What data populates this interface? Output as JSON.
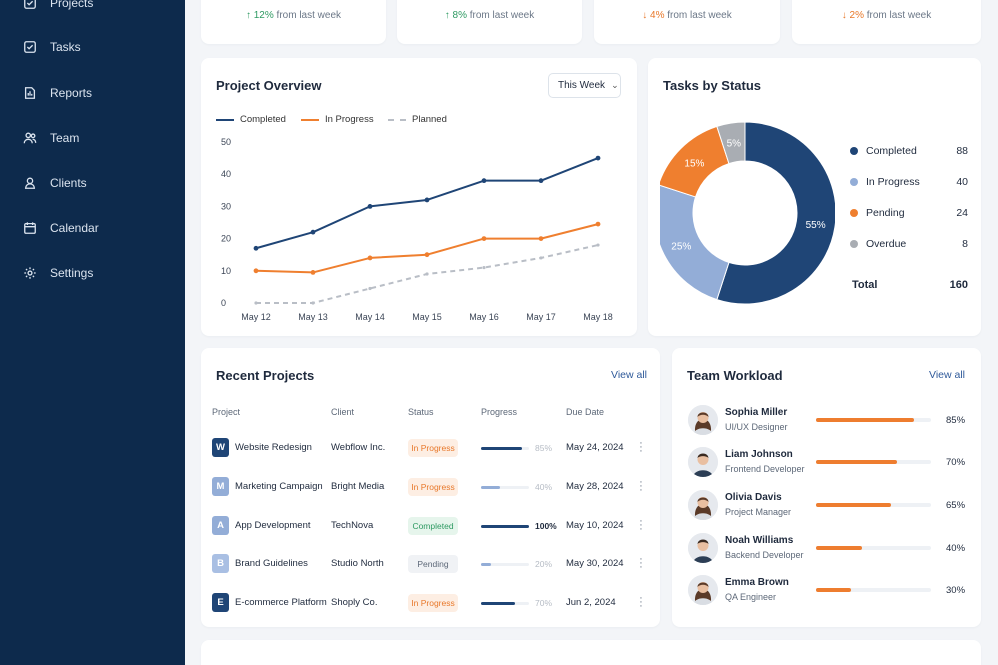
{
  "sidebar": {
    "items": [
      {
        "label": "Projects",
        "icon": "folder-icon"
      },
      {
        "label": "Tasks",
        "icon": "checkbox-icon"
      },
      {
        "label": "Reports",
        "icon": "report-icon"
      },
      {
        "label": "Team",
        "icon": "users-icon"
      },
      {
        "label": "Clients",
        "icon": "clients-icon"
      },
      {
        "label": "Calendar",
        "icon": "calendar-icon"
      },
      {
        "label": "Settings",
        "icon": "gear-icon"
      }
    ]
  },
  "stats": [
    {
      "arrow": "↑",
      "pct": "12%",
      "text": "from last week",
      "trend": "up"
    },
    {
      "arrow": "↑",
      "pct": "8%",
      "text": "from last week",
      "trend": "up"
    },
    {
      "arrow": "↓",
      "pct": "4%",
      "text": "from last week",
      "trend": "down"
    },
    {
      "arrow": "↓",
      "pct": "2%",
      "text": "from last week",
      "trend": "down"
    }
  ],
  "overview": {
    "title": "Project Overview",
    "period": "This Week",
    "legend": [
      "Completed",
      "In Progress",
      "Planned"
    ]
  },
  "tasks_status": {
    "title": "Tasks by Status",
    "items": [
      {
        "label": "Completed",
        "value": "88"
      },
      {
        "label": "In Progress",
        "value": "40"
      },
      {
        "label": "Pending",
        "value": "24"
      },
      {
        "label": "Overdue",
        "value": "8"
      }
    ],
    "total_label": "Total",
    "total_value": "160"
  },
  "chart_data": [
    {
      "type": "line",
      "x": [
        "May 12",
        "May 13",
        "May 14",
        "May 15",
        "May 16",
        "May 17",
        "May 18"
      ],
      "ylim": [
        0,
        50
      ],
      "yticks": [
        "0",
        "10",
        "20",
        "30",
        "40",
        "50"
      ],
      "series": [
        {
          "name": "Completed",
          "values": [
            17,
            22,
            30,
            32,
            38,
            38,
            45
          ],
          "color": "#1f4576",
          "style": "solid"
        },
        {
          "name": "In Progress",
          "values": [
            10,
            9.5,
            14,
            15,
            20,
            20,
            24.5
          ],
          "color": "#ef7f2f",
          "style": "solid"
        },
        {
          "name": "Planned",
          "values": [
            0,
            0,
            4.5,
            9,
            11,
            14,
            18
          ],
          "color": "#b9bec6",
          "style": "dashed"
        }
      ],
      "legend": "top-left",
      "grid": false
    },
    {
      "type": "pie",
      "donut": true,
      "labels": [
        "Completed",
        "In Progress",
        "Pending",
        "Overdue"
      ],
      "values": [
        55,
        25,
        15,
        5
      ],
      "value_labels": [
        "55%",
        "25%",
        "15%",
        "5%"
      ],
      "colors": [
        "#1f4576",
        "#93add7",
        "#ef7f2f",
        "#a9adb3"
      ]
    }
  ],
  "recent": {
    "title": "Recent Projects",
    "view_all": "View all",
    "headers": [
      "Project",
      "Client",
      "Status",
      "Progress",
      "Due Date"
    ],
    "rows": [
      {
        "initial": "W",
        "name": "Website Redesign",
        "client": "Webflow Inc.",
        "status": "In Progress",
        "progress": 0.85,
        "pct": "85%",
        "due": "May 24, 2024",
        "badge_color": "#1f4576",
        "status_type": "progress"
      },
      {
        "initial": "M",
        "name": "Marketing Campaign",
        "client": "Bright Media",
        "status": "In Progress",
        "progress": 0.4,
        "pct": "40%",
        "due": "May 28, 2024",
        "badge_color": "#93add7",
        "status_type": "progress"
      },
      {
        "initial": "A",
        "name": "App Development",
        "client": "TechNova",
        "status": "Completed",
        "progress": 1.0,
        "pct": "100%",
        "due": "May 10, 2024",
        "badge_color": "#93add7",
        "status_type": "completed"
      },
      {
        "initial": "B",
        "name": "Brand Guidelines",
        "client": "Studio North",
        "status": "Pending",
        "progress": 0.2,
        "pct": "20%",
        "due": "May 30, 2024",
        "badge_color": "#a9bfe3",
        "status_type": "pending"
      },
      {
        "initial": "E",
        "name": "E-commerce Platform",
        "client": "Shoply Co.",
        "status": "In Progress",
        "progress": 0.7,
        "pct": "70%",
        "due": "Jun 2, 2024",
        "badge_color": "#1f4576",
        "status_type": "progress"
      }
    ]
  },
  "workload": {
    "title": "Team Workload",
    "view_all": "View all",
    "members": [
      {
        "name": "Sophia Miller",
        "role": "UI/UX Designer",
        "load": 0.85,
        "pct": "85%",
        "gender": "f"
      },
      {
        "name": "Liam Johnson",
        "role": "Frontend Developer",
        "load": 0.7,
        "pct": "70%",
        "gender": "m"
      },
      {
        "name": "Olivia Davis",
        "role": "Project Manager",
        "load": 0.65,
        "pct": "65%",
        "gender": "f"
      },
      {
        "name": "Noah Williams",
        "role": "Backend Developer",
        "load": 0.4,
        "pct": "40%",
        "gender": "m"
      },
      {
        "name": "Emma Brown",
        "role": "QA Engineer",
        "load": 0.3,
        "pct": "30%",
        "gender": "f"
      }
    ]
  }
}
